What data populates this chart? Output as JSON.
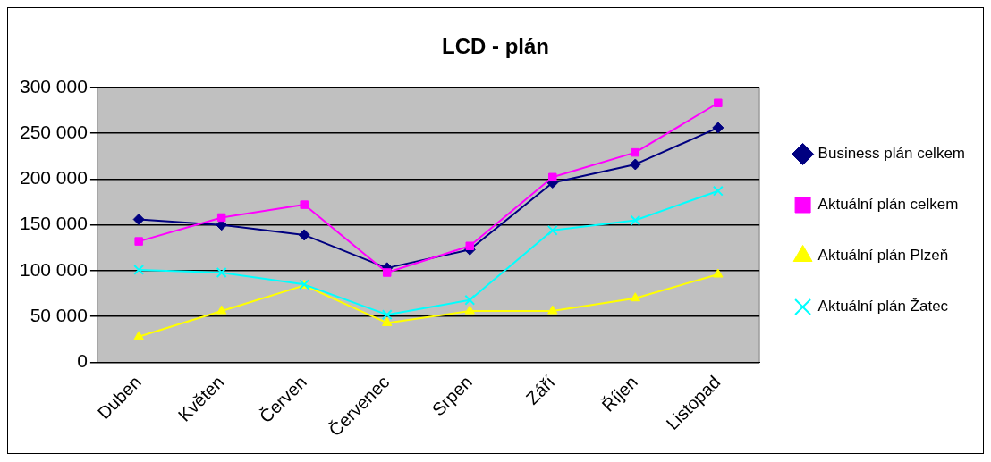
{
  "chart_data": {
    "type": "line",
    "title": "LCD - plán",
    "categories": [
      "Duben",
      "Květen",
      "Červen",
      "Červenec",
      "Srpen",
      "Září",
      "Říjen",
      "Listopad"
    ],
    "series": [
      {
        "name": "Business plán celkem",
        "color": "#000080",
        "marker": "diamond",
        "values": [
          156000,
          150000,
          139000,
          103000,
          123000,
          196000,
          216000,
          256000
        ]
      },
      {
        "name": "Aktuální plán celkem",
        "color": "#ff00ff",
        "marker": "square",
        "values": [
          132000,
          158000,
          172000,
          98000,
          127000,
          202000,
          229000,
          283000
        ]
      },
      {
        "name": "Aktuální plán Plzeň",
        "color": "#ffff00",
        "marker": "triangle",
        "values": [
          28000,
          56000,
          84000,
          43000,
          56000,
          56000,
          70000,
          96000
        ]
      },
      {
        "name": "Aktuální plán Žatec",
        "color": "#00ffff",
        "marker": "cross",
        "values": [
          101000,
          98000,
          85000,
          52000,
          68000,
          144000,
          155000,
          187000
        ]
      }
    ],
    "ylim": [
      0,
      300000
    ],
    "yticks": [
      0,
      {
        "value": 50000,
        "label": "50 000"
      },
      {
        "value": 100000,
        "label": "100 000"
      },
      {
        "value": 150000,
        "label": "150 000"
      },
      {
        "value": 200000,
        "label": "200 000"
      },
      {
        "value": 250000,
        "label": "250 000"
      },
      {
        "value": 300000,
        "label": "300 000"
      }
    ],
    "grid": "y",
    "legend": "right"
  }
}
